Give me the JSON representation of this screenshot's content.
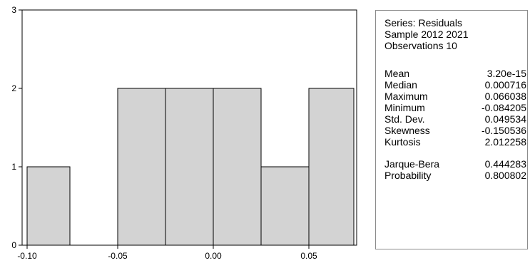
{
  "chart_data": {
    "type": "bar",
    "title": "",
    "xlabel": "",
    "ylabel": "",
    "bins": [
      {
        "from": -0.1,
        "to": -0.075,
        "count": 1
      },
      {
        "from": -0.075,
        "to": -0.05,
        "count": 0
      },
      {
        "from": -0.05,
        "to": -0.025,
        "count": 2
      },
      {
        "from": -0.025,
        "to": 0.0,
        "count": 2
      },
      {
        "from": 0.0,
        "to": 0.025,
        "count": 2
      },
      {
        "from": 0.025,
        "to": 0.05,
        "count": 1
      },
      {
        "from": 0.05,
        "to": 0.075,
        "count": 2
      }
    ],
    "xlim": [
      -0.1,
      0.075
    ],
    "ylim": [
      0,
      3
    ],
    "xticks": [
      "-0.10",
      "-0.05",
      "0.00",
      "0.05"
    ],
    "xtick_values": [
      -0.1,
      -0.05,
      0.0,
      0.05
    ],
    "yticks": [
      "0",
      "1",
      "2",
      "3"
    ],
    "ytick_values": [
      0,
      1,
      2,
      3
    ],
    "grid": false,
    "bar_fill": "#d3d3d3",
    "bar_edge": "#000000"
  },
  "stats": {
    "header": [
      "Series: Residuals",
      "Sample 2012 2021",
      "Observations 10"
    ],
    "rows": [
      {
        "label": "Mean",
        "value": "3.20e-15"
      },
      {
        "label": "Median",
        "value": "0.000716"
      },
      {
        "label": "Maximum",
        "value": "0.066038"
      },
      {
        "label": "Minimum",
        "value": "-0.084205"
      },
      {
        "label": "Std. Dev.",
        "value": "0.049534"
      },
      {
        "label": "Skewness",
        "value": "-0.150536"
      },
      {
        "label": "Kurtosis",
        "value": "2.012258"
      }
    ],
    "jb_rows": [
      {
        "label": "Jarque-Bera",
        "value": "0.444283"
      },
      {
        "label": "Probability",
        "value": "0.800802"
      }
    ]
  }
}
